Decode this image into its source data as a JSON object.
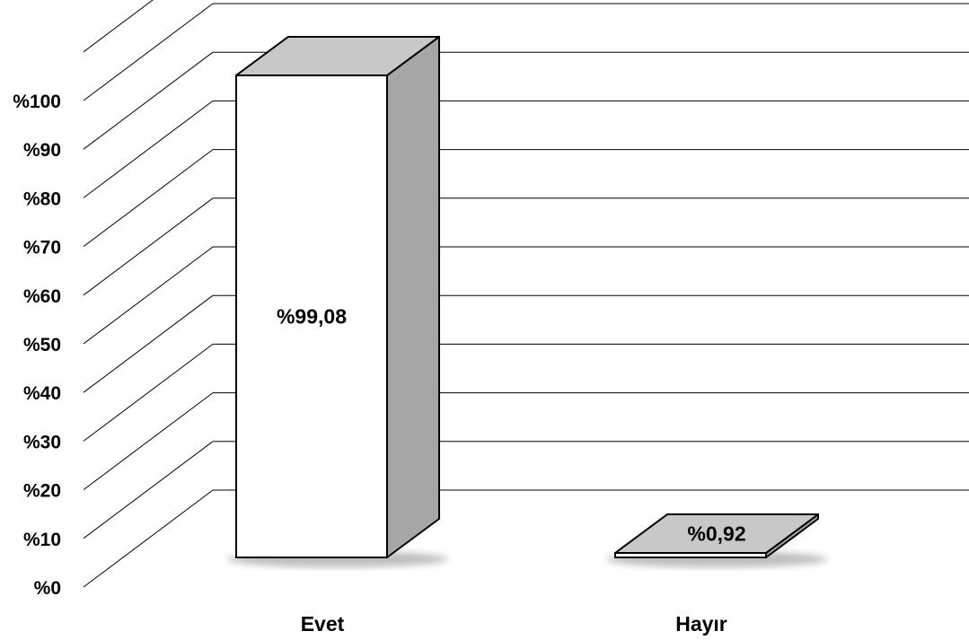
{
  "chart_data": {
    "type": "bar",
    "categories": [
      "Evet",
      "Hayır"
    ],
    "values": [
      99.08,
      0.92
    ],
    "data_labels": [
      "%99,08",
      "%0,92"
    ],
    "ylim": [
      0,
      110
    ],
    "yticks": [
      0,
      10,
      20,
      30,
      40,
      50,
      60,
      70,
      80,
      90,
      100
    ],
    "ytick_labels": [
      "%0",
      "%10",
      "%20",
      "%30",
      "%40",
      "%50",
      "%60",
      "%70",
      "%80",
      "%90",
      "%100"
    ],
    "grid": true,
    "legend": "none",
    "colors": {
      "bar_front": "#ffffff",
      "bar_side": "#a6a6a6",
      "bar_top": "#c8c8c8",
      "gridline": "#000000"
    }
  }
}
